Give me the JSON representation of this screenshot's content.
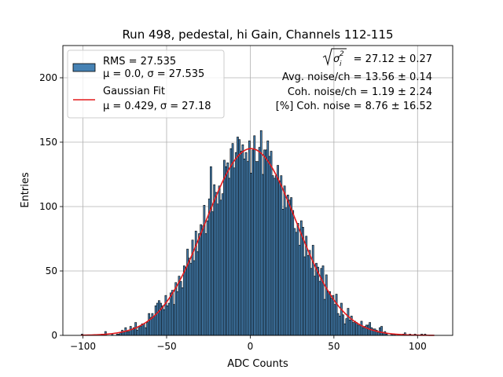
{
  "chart_data": {
    "type": "bar",
    "title": "Run 498, pedestal, hi Gain, Channels 112-115",
    "xlabel": "ADC Counts",
    "ylabel": "Entries",
    "xlim": [
      -112,
      121
    ],
    "ylim": [
      0,
      225
    ],
    "xticks": [
      -100,
      -50,
      0,
      50,
      100
    ],
    "yticks": [
      0,
      50,
      100,
      150,
      200
    ],
    "grid": true,
    "legend_placement": "top-left",
    "histogram": {
      "name": "RMS = 27.535",
      "name_line2": "μ = 0.0, σ = 27.535",
      "bin_width": 1,
      "x_min": -101,
      "x_max": 110,
      "rms": 27.535,
      "mean": 0.0,
      "sigma": 27.535,
      "total_entries": 10000,
      "face_color": "#4682b4",
      "edge_color": "#000000"
    },
    "fit": {
      "name": "Gaussian Fit",
      "name_line2": "μ = 0.429, σ = 27.18",
      "mu": 0.429,
      "sigma": 27.18,
      "peak": 145,
      "color": "#e41a1c"
    },
    "annotations": {
      "sqrt_value": "= 27.12 ± 0.27",
      "avg_noise": "Avg. noise/ch = 13.56 ± 0.14",
      "coh_noise": "Coh. noise/ch = 1.19 ± 2.24",
      "coh_pct": "[%] Coh. noise = 8.76 ± 16.52"
    }
  }
}
